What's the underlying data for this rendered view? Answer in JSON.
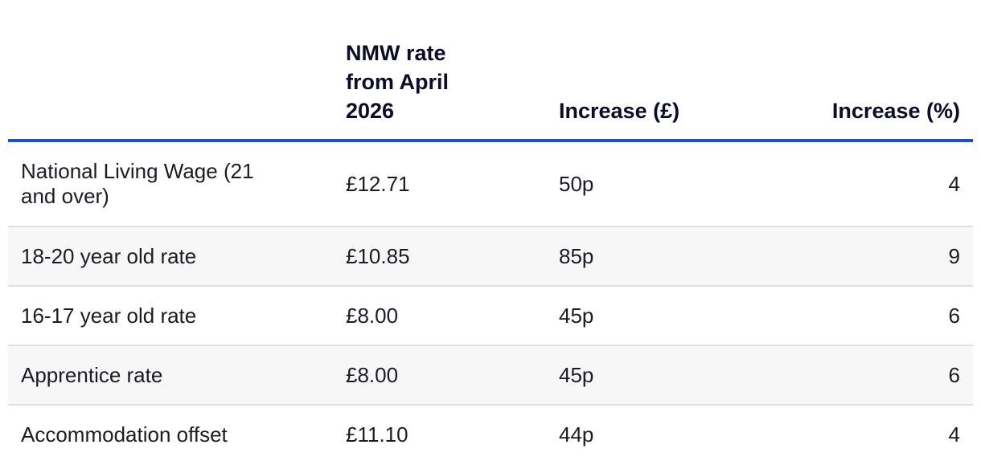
{
  "table": {
    "headers": [
      "",
      "NMW rate from April 2026",
      "Increase (£)",
      "Increase (%)"
    ],
    "rows": [
      {
        "rate_name": "National Living Wage (21 and over)",
        "rate": "£12.71",
        "increase_gbp": "50p",
        "increase_pct": "4"
      },
      {
        "rate_name": "18-20 year old rate",
        "rate": "£10.85",
        "increase_gbp": "85p",
        "increase_pct": "9"
      },
      {
        "rate_name": "16-17 year old rate",
        "rate": "£8.00",
        "increase_gbp": "45p",
        "increase_pct": "6"
      },
      {
        "rate_name": "Apprentice rate",
        "rate": "£8.00",
        "increase_gbp": "45p",
        "increase_pct": "6"
      },
      {
        "rate_name": "Accommodation offset",
        "rate": "£11.10",
        "increase_gbp": "44p",
        "increase_pct": "4"
      }
    ],
    "colors": {
      "header_rule": "#1d4fc4",
      "row_divider": "#e0e0e0",
      "stripe": "#f7f7f7"
    }
  }
}
